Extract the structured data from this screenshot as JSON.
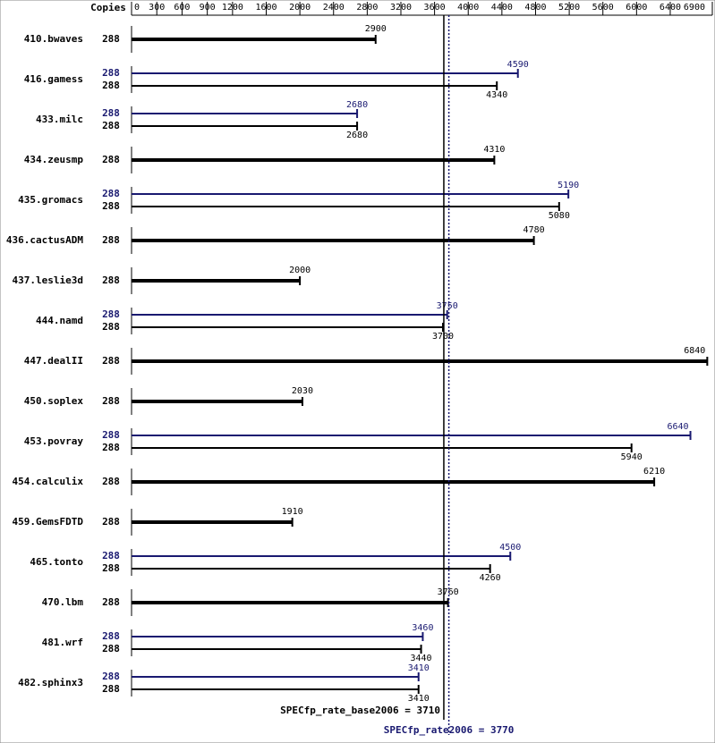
{
  "chart_data": {
    "type": "bar",
    "orientation": "horizontal",
    "copies_label": "Copies",
    "xlim": [
      0,
      6900
    ],
    "xticks": [
      0,
      300,
      600,
      900,
      1200,
      1600,
      2000,
      2400,
      2800,
      3200,
      3600,
      4000,
      4400,
      4800,
      5200,
      5600,
      6000,
      6400,
      6900
    ],
    "categories": [
      "410.bwaves",
      "416.gamess",
      "433.milc",
      "434.zeusmp",
      "435.gromacs",
      "436.cactusADM",
      "437.leslie3d",
      "444.namd",
      "447.dealII",
      "450.soplex",
      "453.povray",
      "454.calculix",
      "459.GemsFDTD",
      "465.tonto",
      "470.lbm",
      "481.wrf",
      "482.sphinx3"
    ],
    "series": [
      {
        "color": "#000000",
        "copies": [
          288,
          288,
          288,
          288,
          288,
          288,
          288,
          288,
          288,
          288,
          288,
          288,
          288,
          288,
          288,
          288,
          288
        ],
        "values": [
          2900,
          4340,
          2680,
          4310,
          5080,
          4780,
          2000,
          3700,
          6840,
          2030,
          5940,
          6210,
          1910,
          4260,
          3760,
          3440,
          3410
        ]
      },
      {
        "color": "#191970",
        "copies": [
          null,
          288,
          288,
          null,
          288,
          null,
          null,
          288,
          null,
          null,
          288,
          null,
          null,
          288,
          null,
          288,
          288
        ],
        "values": [
          null,
          4590,
          2680,
          null,
          5190,
          null,
          null,
          3750,
          null,
          null,
          6640,
          null,
          null,
          4500,
          null,
          3460,
          3410
        ]
      }
    ],
    "reference_lines": [
      {
        "value": 3710,
        "label": "SPECfp_rate_base2006 = 3710",
        "color": "#000000",
        "style": "solid"
      },
      {
        "value": 3770,
        "label": "SPECfp_rate2006 = 3770",
        "color": "#191970",
        "style": "dotted"
      }
    ]
  }
}
